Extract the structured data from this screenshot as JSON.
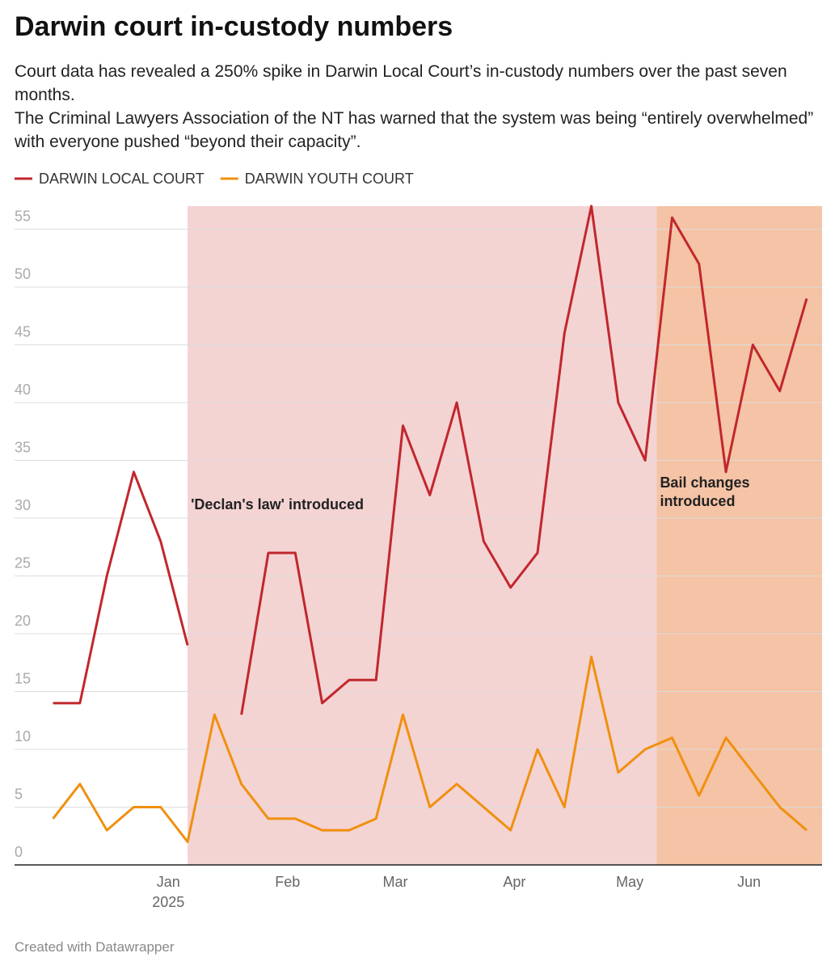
{
  "chart_data": {
    "type": "line",
    "title": "Darwin court in-custody numbers",
    "description": [
      "Court data has revealed a 250% spike in Darwin Local Court’s in-custody numbers over the past seven months.",
      "The Criminal Lawyers Association of the NT has warned that the system was being “entirely overwhelmed” with everyone pushed “beyond their capacity”."
    ],
    "source": "Created with Datawrapper",
    "x": [
      "2024-12-02",
      "2024-12-09",
      "2024-12-16",
      "2024-12-23",
      "2024-12-30",
      "2025-01-06",
      "2025-01-13",
      "2025-01-20",
      "2025-01-27",
      "2025-02-03",
      "2025-02-10",
      "2025-02-17",
      "2025-02-24",
      "2025-03-03",
      "2025-03-10",
      "2025-03-17",
      "2025-03-24",
      "2025-03-31",
      "2025-04-07",
      "2025-04-14",
      "2025-04-21",
      "2025-04-28",
      "2025-05-05",
      "2025-05-12",
      "2025-05-19",
      "2025-05-26",
      "2025-06-02",
      "2025-06-09",
      "2025-06-16"
    ],
    "series": [
      {
        "name": "DARWIN LOCAL COURT",
        "color": "#c1272d",
        "values": [
          14,
          14,
          25,
          34,
          28,
          19,
          null,
          13,
          27,
          27,
          14,
          16,
          16,
          38,
          32,
          40,
          28,
          24,
          27,
          46,
          57,
          40,
          35,
          56,
          52,
          34,
          45,
          41,
          49
        ]
      },
      {
        "name": "DARWIN YOUTH COURT",
        "color": "#f0900f",
        "values": [
          4,
          7,
          3,
          5,
          5,
          2,
          13,
          7,
          4,
          4,
          3,
          3,
          4,
          13,
          5,
          7,
          5,
          3,
          10,
          5,
          18,
          8,
          10,
          11,
          6,
          11,
          8,
          5,
          3
        ]
      }
    ],
    "xlim": [
      "2024-11-22",
      "2025-06-20"
    ],
    "xticks": [
      {
        "value": "2025-01-01",
        "label": "Jan",
        "sublabel": "2025"
      },
      {
        "value": "2025-02-01",
        "label": "Feb"
      },
      {
        "value": "2025-03-01",
        "label": "Mar"
      },
      {
        "value": "2025-04-01",
        "label": "Apr"
      },
      {
        "value": "2025-05-01",
        "label": "May"
      },
      {
        "value": "2025-06-01",
        "label": "Jun"
      }
    ],
    "ylim": [
      0,
      57
    ],
    "yticks": [
      0,
      5,
      10,
      15,
      20,
      25,
      30,
      35,
      40,
      45,
      50,
      55
    ],
    "grid": true,
    "ranges": [
      {
        "from": "2025-01-06",
        "to": "2025-05-08",
        "color": "#f4d3d3",
        "label_lines": [
          "'Declan's law' introduced"
        ]
      },
      {
        "from": "2025-05-08",
        "to": "2025-06-20",
        "color": "#f5c3a5",
        "label_lines": [
          "Bail changes",
          "introduced"
        ]
      }
    ]
  }
}
